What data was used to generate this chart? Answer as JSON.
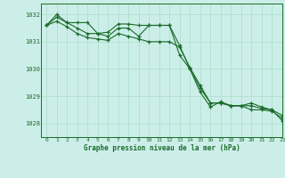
{
  "title": "Graphe pression niveau de la mer (hPa)",
  "bg_color": "#cceee8",
  "grid_color": "#aaddcc",
  "line_color": "#1a6b2a",
  "xlim": [
    -0.5,
    23
  ],
  "ylim": [
    1027.5,
    1032.4
  ],
  "yticks": [
    1028,
    1029,
    1030,
    1031,
    1032
  ],
  "xticks": [
    0,
    1,
    2,
    3,
    4,
    5,
    6,
    7,
    8,
    9,
    10,
    11,
    12,
    13,
    14,
    15,
    16,
    17,
    18,
    19,
    20,
    21,
    22,
    23
  ],
  "series1": [
    1031.6,
    1031.9,
    1031.7,
    1031.7,
    1031.7,
    1031.3,
    1031.2,
    1031.5,
    1031.5,
    1031.2,
    1031.6,
    1031.6,
    1031.6,
    1030.5,
    1030.0,
    1029.3,
    1028.75,
    1028.75,
    1028.65,
    1028.65,
    1028.5,
    1028.5,
    1028.45,
    1028.2
  ],
  "series2": [
    1031.6,
    1031.75,
    1031.55,
    1031.3,
    1031.15,
    1031.1,
    1031.05,
    1031.3,
    1031.2,
    1031.1,
    1031.0,
    1031.0,
    1031.0,
    1030.8,
    1030.05,
    1029.4,
    1028.75,
    1028.75,
    1028.65,
    1028.65,
    1028.65,
    1028.55,
    1028.5,
    1028.3
  ],
  "series3": [
    1031.6,
    1032.0,
    1031.7,
    1031.5,
    1031.3,
    1031.3,
    1031.35,
    1031.65,
    1031.65,
    1031.6,
    1031.6,
    1031.6,
    1031.6,
    1030.85,
    1030.0,
    1029.15,
    1028.6,
    1028.8,
    1028.65,
    1028.65,
    1028.75,
    1028.6,
    1028.5,
    1028.1
  ]
}
